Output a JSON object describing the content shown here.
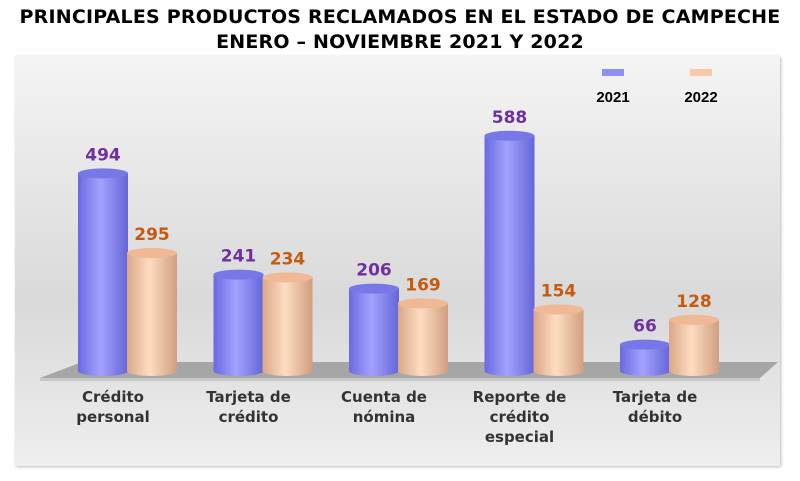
{
  "title_line1": "PRINCIPALES PRODUCTOS RECLAMADOS EN EL ESTADO DE CAMPECHE",
  "title_line2": "ENERO – NOVIEMBRE 2021 Y 2022",
  "chart_data": {
    "type": "bar",
    "title": "PRINCIPALES PRODUCTOS RECLAMADOS EN EL ESTADO DE CAMPECHE ENERO – NOVIEMBRE 2021 Y 2022",
    "categories": [
      "Crédito personal",
      "Tarjeta de crédito",
      "Cuenta de nómina",
      "Reporte de crédito especial",
      "Tarjeta de débito"
    ],
    "series": [
      {
        "name": "2021",
        "values": [
          494,
          241,
          206,
          588,
          66
        ],
        "color": "#8f8ff5",
        "label_color": "#7030a0"
      },
      {
        "name": "2022",
        "values": [
          295,
          234,
          169,
          154,
          128
        ],
        "color": "#f9c9a6",
        "label_color": "#c55a11"
      }
    ],
    "legend": "top-right",
    "grid": false
  }
}
